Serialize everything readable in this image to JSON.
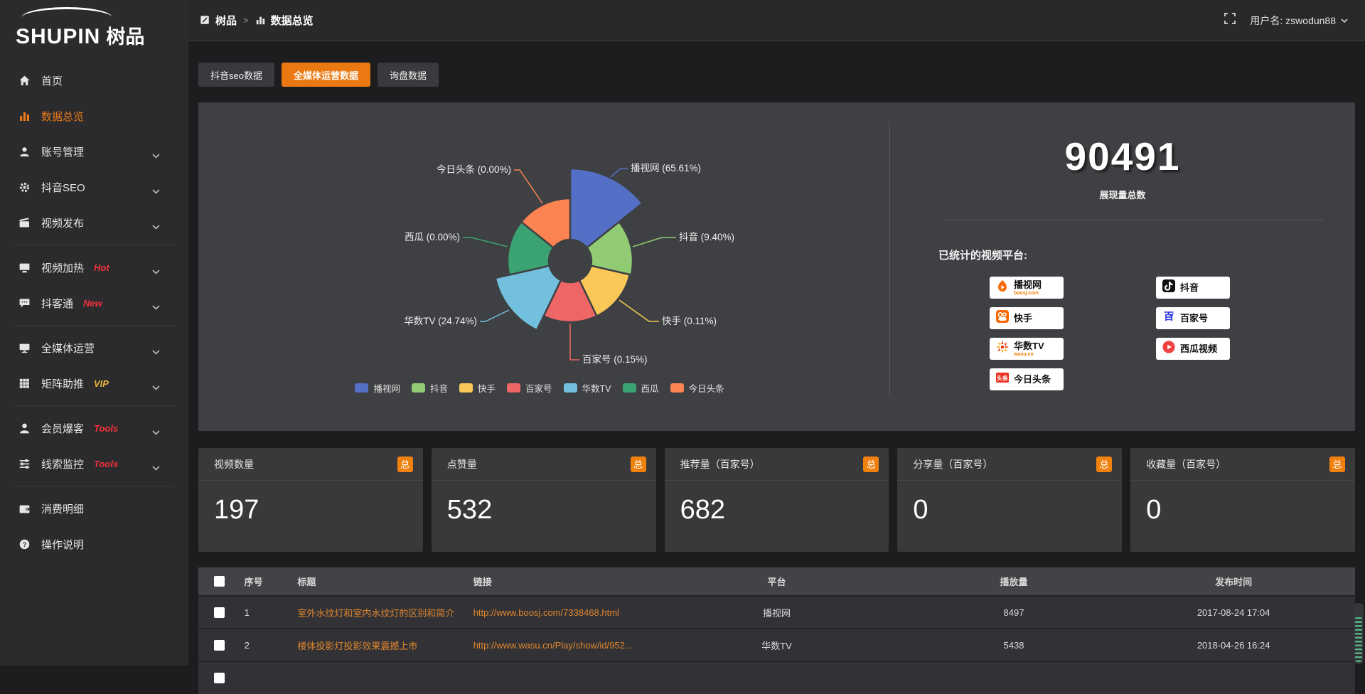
{
  "brand": {
    "logo_en": "SHUPIN",
    "logo_cn": "树品"
  },
  "topbar": {
    "breadcrumb": [
      {
        "icon": "doc-icon",
        "label": "树品"
      },
      {
        "icon": "chart-icon",
        "label": "数据总览"
      }
    ],
    "separator": ">",
    "username_prefix": "用户名: ",
    "username": "zswodun88"
  },
  "sidebar": {
    "items": [
      {
        "icon": "home",
        "label": "首页"
      },
      {
        "icon": "bar-chart",
        "label": "数据总览",
        "active": true
      },
      {
        "icon": "user",
        "label": "账号管理",
        "chevron": true
      },
      {
        "icon": "gear",
        "label": "抖音SEO",
        "chevron": true
      },
      {
        "icon": "clapper",
        "label": "视频发布",
        "chevron": true
      },
      {
        "divider": true
      },
      {
        "icon": "screen-play",
        "label": "视频加热",
        "tag": "Hot",
        "tag_color": "#f5303d",
        "chevron": true
      },
      {
        "icon": "chat",
        "label": "抖客通",
        "tag": "New",
        "tag_color": "#f5303d",
        "chevron": true
      },
      {
        "divider": true
      },
      {
        "icon": "monitor",
        "label": "全媒体运营",
        "chevron": true
      },
      {
        "icon": "grid",
        "label": "矩阵助推",
        "tag": "VIP",
        "tag_color": "#e8b339",
        "chevron": true
      },
      {
        "divider": true
      },
      {
        "icon": "person",
        "label": "会员爆客",
        "tag": "Tools",
        "tag_color": "#f5303d",
        "chevron": true
      },
      {
        "icon": "sliders",
        "label": "线索监控",
        "tag": "Tools",
        "tag_color": "#f5303d",
        "chevron": true
      },
      {
        "divider": true
      },
      {
        "icon": "wallet",
        "label": "消费明细"
      },
      {
        "icon": "question",
        "label": "操作说明"
      }
    ]
  },
  "tabs": [
    {
      "label": "抖音seo数据",
      "active": false
    },
    {
      "label": "全媒体运营数据",
      "active": true
    },
    {
      "label": "询盘数据",
      "active": false
    }
  ],
  "chart_data": {
    "type": "pie",
    "subtype": "nightingale-rose",
    "labels": [
      "播视网",
      "抖音",
      "快手",
      "百家号",
      "华数TV",
      "西瓜",
      "今日头条"
    ],
    "percents": [
      65.61,
      9.4,
      0.11,
      0.15,
      24.74,
      0.0,
      0.0
    ],
    "label_texts": [
      "播视网 (65.61%)",
      "抖音 (9.40%)",
      "快手 (0.11%)",
      "百家号 (0.15%)",
      "华数TV (24.74%)",
      "西瓜 (0.00%)",
      "今日头条 (0.00%)"
    ],
    "colors": [
      "#5470c6",
      "#91cc75",
      "#fac858",
      "#ee6666",
      "#73c0de",
      "#3ba272",
      "#fc8452"
    ],
    "legend": [
      "播视网",
      "抖音",
      "快手",
      "百家号",
      "华数TV",
      "西瓜",
      "今日头条"
    ],
    "legend_position": "bottom"
  },
  "overview": {
    "total_value": "90491",
    "total_label": "展现量总数",
    "platforms_title": "已统计的视频平台:",
    "platform_columns": {
      "left": [
        {
          "name": "播视网",
          "sub": "boosj.com",
          "icon": "boosj-logo"
        },
        {
          "name": "快手",
          "icon": "kuaishou-logo"
        },
        {
          "name": "华数TV",
          "sub": "wasu.cn",
          "icon": "wasu-logo"
        },
        {
          "name": "今日头条",
          "icon": "toutiao-logo"
        }
      ],
      "right": [
        {
          "name": "抖音",
          "icon": "douyin-logo"
        },
        {
          "name": "百家号",
          "icon": "baijia-logo"
        },
        {
          "name": "西瓜视频",
          "icon": "xigua-logo"
        }
      ]
    }
  },
  "stat_cards": [
    {
      "label": "视频数量",
      "badge": "总",
      "value": "197"
    },
    {
      "label": "点赞量",
      "badge": "总",
      "value": "532"
    },
    {
      "label": "推荐量（百家号）",
      "badge": "总",
      "value": "682"
    },
    {
      "label": "分享量（百家号）",
      "badge": "总",
      "value": "0"
    },
    {
      "label": "收藏量（百家号）",
      "badge": "总",
      "value": "0"
    }
  ],
  "table": {
    "headers": [
      "序号",
      "标题",
      "链接",
      "平台",
      "播放量",
      "发布时间"
    ],
    "rows": [
      {
        "num": "1",
        "title": "室外水纹灯和室内水纹灯的区别和简介",
        "link": "http://www.boosj.com/7338468.html",
        "platform": "播视网",
        "plays": "8497",
        "time": "2017-08-24 17:04"
      },
      {
        "num": "2",
        "title": "楼体投影灯投影效果震撼上市",
        "link": "http://www.wasu.cn/Play/show/id/952...",
        "platform": "华数TV",
        "plays": "5438",
        "time": "2018-04-26 16:24"
      }
    ]
  },
  "colors": {
    "accent": "#ea7911",
    "link": "#e0862e",
    "badge": "#f0810f"
  }
}
